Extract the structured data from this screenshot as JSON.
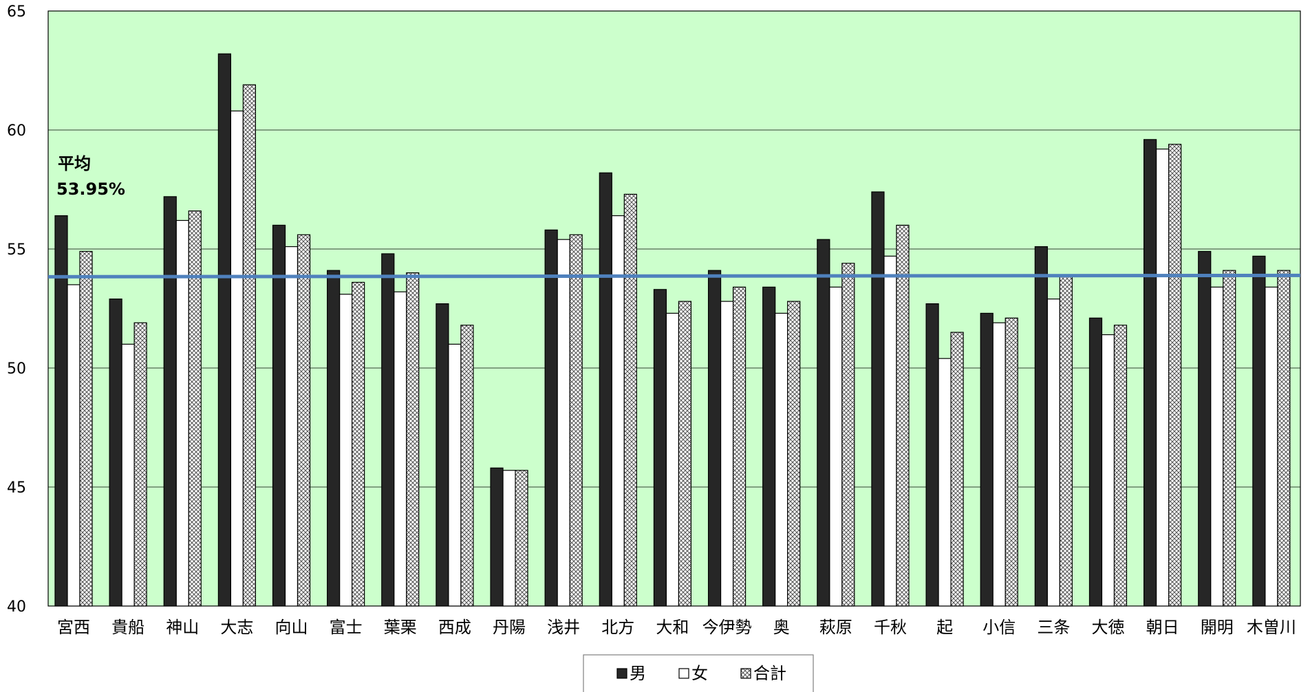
{
  "chart_data": {
    "type": "bar",
    "categories": [
      "宮西",
      "貴船",
      "神山",
      "大志",
      "向山",
      "富士",
      "葉栗",
      "西成",
      "丹陽",
      "浅井",
      "北方",
      "大和",
      "今伊勢",
      "奥",
      "萩原",
      "千秋",
      "起",
      "小信",
      "三条",
      "大徳",
      "朝日",
      "開明",
      "木曽川"
    ],
    "series": [
      {
        "name": "男",
        "color": "#262626",
        "pattern": "solid",
        "values": [
          56.4,
          52.9,
          57.2,
          63.2,
          56.0,
          54.1,
          54.8,
          52.7,
          45.8,
          55.8,
          58.2,
          53.3,
          54.1,
          53.4,
          55.4,
          57.4,
          52.7,
          52.3,
          55.1,
          52.1,
          59.6,
          54.9,
          54.7
        ]
      },
      {
        "name": "女",
        "color": "#ffffff",
        "pattern": "none",
        "values": [
          53.5,
          51.0,
          56.2,
          60.8,
          55.1,
          53.1,
          53.2,
          51.0,
          45.7,
          55.4,
          56.4,
          52.3,
          52.8,
          52.3,
          53.4,
          54.7,
          50.4,
          51.9,
          52.9,
          51.4,
          59.2,
          53.4,
          53.4
        ]
      },
      {
        "name": "合計",
        "color": "#bfbfbf",
        "pattern": "crosshatch",
        "values": [
          54.9,
          51.9,
          56.6,
          61.9,
          55.6,
          53.6,
          54.0,
          51.8,
          45.7,
          55.6,
          57.3,
          52.8,
          53.4,
          52.8,
          54.4,
          56.0,
          51.5,
          52.1,
          53.9,
          51.8,
          59.4,
          54.1,
          54.1
        ]
      }
    ],
    "ylim": [
      40,
      65
    ],
    "yticks": [
      40,
      45,
      50,
      55,
      60,
      65
    ],
    "grid": true,
    "legend": "bottom-center",
    "plot_background": "#ccffcc",
    "average_line": {
      "value": 53.95,
      "color": "#4f81bd",
      "label": "平均",
      "value_label": "53.95%"
    }
  }
}
